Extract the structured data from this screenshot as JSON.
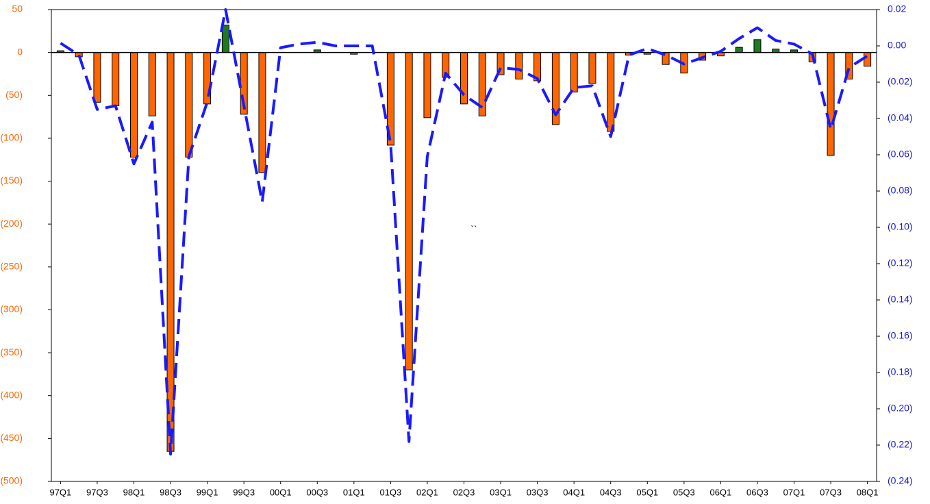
{
  "chart_data": {
    "type": "bar_line",
    "annotation": "``",
    "categories": [
      "97Q1",
      null,
      "97Q3",
      null,
      "98Q1",
      null,
      "98Q3",
      null,
      "99Q1",
      null,
      "99Q3",
      null,
      "00Q1",
      null,
      "00Q3",
      null,
      "01Q1",
      null,
      "01Q3",
      null,
      "02Q1",
      null,
      "02Q3",
      null,
      "03Q1",
      null,
      "03Q3",
      null,
      "04Q1",
      null,
      "04Q3",
      null,
      "05Q1",
      null,
      "05Q3",
      null,
      "06Q1",
      null,
      "06Q3",
      null,
      "07Q1",
      null,
      "07Q3",
      null,
      "08Q1"
    ],
    "series": [
      {
        "type": "bar",
        "color": "#ff6600",
        "positive_color": "#1f7a1f",
        "values": [
          2,
          -5,
          -58,
          -62,
          -122,
          -74,
          -465,
          -122,
          -60,
          32,
          -72,
          -140,
          0,
          0,
          3,
          0,
          -2,
          0,
          -108,
          -370,
          -76,
          -29,
          -60,
          -74,
          -26,
          -31,
          -33,
          -84,
          -46,
          -36,
          -92,
          -3,
          -2,
          -14,
          -24,
          -9,
          -4,
          6,
          15,
          4,
          3,
          -11,
          -120,
          -31,
          -16
        ]
      },
      {
        "type": "line",
        "axis": "y2",
        "color": "#1a1aff",
        "dashed": true,
        "values": [
          0.0015,
          -0.005,
          -0.035,
          -0.033,
          -0.065,
          -0.042,
          -0.225,
          -0.061,
          -0.031,
          0.02,
          -0.033,
          -0.086,
          -0.001,
          0.001,
          0.002,
          0,
          0,
          0,
          -0.054,
          -0.218,
          -0.061,
          -0.015,
          -0.027,
          -0.034,
          -0.012,
          -0.013,
          -0.018,
          -0.038,
          -0.023,
          -0.022,
          -0.05,
          -0.005,
          -0.0015,
          -0.005,
          -0.01,
          -0.0065,
          -0.003,
          0.004,
          0.01,
          0.003,
          0.001,
          -0.0045,
          -0.046,
          -0.012,
          -0.0055
        ]
      }
    ],
    "ylim": [
      -500,
      50
    ],
    "yticks": [
      50,
      0,
      {
        "value": -50,
        "label": "(50)"
      },
      {
        "value": -100,
        "label": "(100)"
      },
      {
        "value": -150,
        "label": "(150)"
      },
      {
        "value": -200,
        "label": "(200)"
      },
      {
        "value": -250,
        "label": "(250)"
      },
      {
        "value": -300,
        "label": "(300)"
      },
      {
        "value": -350,
        "label": "(350)"
      },
      {
        "value": -400,
        "label": "(400)"
      },
      {
        "value": -450,
        "label": "(450)"
      },
      {
        "value": -500,
        "label": "(500)"
      }
    ],
    "y_tick_color": "#ff6600",
    "y2lim": [
      -0.24,
      0.02
    ],
    "y2ticks": [
      0.02,
      {
        "value": 0,
        "label": "0.00"
      },
      {
        "value": -0.02,
        "label": "(0.02)"
      },
      {
        "value": -0.04,
        "label": "(0.04)"
      },
      {
        "value": -0.06,
        "label": "(0.06)"
      },
      {
        "value": -0.08,
        "label": "(0.08)"
      },
      {
        "value": -0.1,
        "label": "(0.10)"
      },
      {
        "value": -0.12,
        "label": "(0.12)"
      },
      {
        "value": -0.14,
        "label": "(0.14)"
      },
      {
        "value": -0.16,
        "label": "(0.16)"
      },
      {
        "value": -0.18,
        "label": "(0.18)"
      },
      {
        "value": -0.2,
        "label": "(0.20)"
      },
      {
        "value": -0.22,
        "label": "(0.22)"
      },
      {
        "value": -0.24,
        "label": "(0.24)"
      }
    ],
    "y2_tick_color": "#1a1acc"
  }
}
